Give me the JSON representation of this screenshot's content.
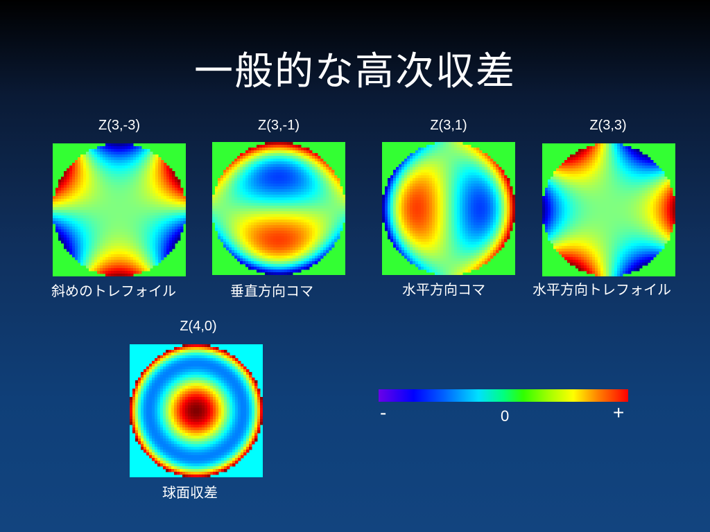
{
  "title": "一般的な高次収差",
  "panels": [
    {
      "code": "Z(3,-3)",
      "name": "斜めのトレフォイル",
      "n": 3,
      "m": -3,
      "background": "#33ff33"
    },
    {
      "code": "Z(3,-1)",
      "name": "垂直方向コマ",
      "n": 3,
      "m": -1,
      "background": "#33ff33"
    },
    {
      "code": "Z(3,1)",
      "name": "水平方向コマ",
      "n": 3,
      "m": 1,
      "background": "#33ff33"
    },
    {
      "code": "Z(3,3)",
      "name": "水平方向トレフォイル",
      "n": 3,
      "m": 3,
      "background": "#33ff33"
    },
    {
      "code": "Z(4,0)",
      "name": "球面収差",
      "n": 4,
      "m": 0,
      "background": "#00ffff"
    }
  ],
  "colorbar": {
    "minus_label": "-",
    "zero_label": "0",
    "plus_label": "+",
    "colormap": "jet"
  }
}
